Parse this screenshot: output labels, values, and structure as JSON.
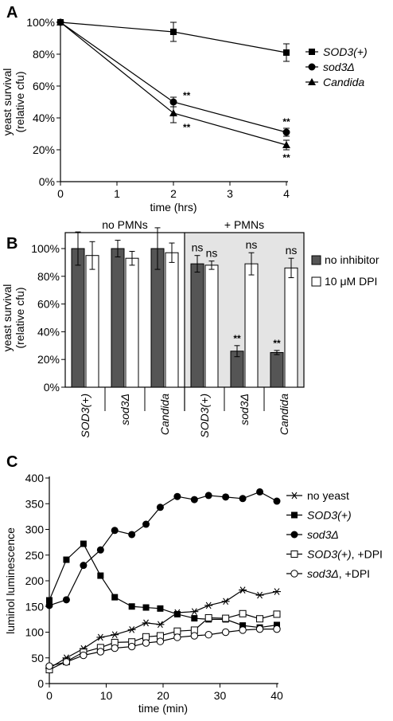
{
  "chart_data": [
    {
      "panel": "A",
      "type": "line",
      "xlabel": "time (hrs)",
      "ylabel": "yeast survival\n(relative cfu)",
      "xlim": [
        0,
        4
      ],
      "ylim": [
        0,
        100
      ],
      "xticks": [
        "0",
        "1",
        "2",
        "3",
        "4"
      ],
      "yticks": [
        "0%",
        "20%",
        "40%",
        "60%",
        "80%",
        "100%"
      ],
      "legend_position": "right",
      "series": [
        {
          "name": "SOD3(+)",
          "marker": "square",
          "x": [
            0,
            2,
            4
          ],
          "y": [
            100,
            94,
            81
          ],
          "err": [
            0,
            6,
            5.5
          ],
          "sig": [
            "",
            "",
            ""
          ]
        },
        {
          "name": "sod3Δ",
          "marker": "circle",
          "x": [
            0,
            2,
            4
          ],
          "y": [
            100,
            50,
            31
          ],
          "err": [
            0,
            3,
            2.5
          ],
          "sig": [
            "",
            "**",
            "**"
          ]
        },
        {
          "name": "Candida",
          "marker": "triangle",
          "x": [
            0,
            2,
            4
          ],
          "y": [
            100,
            43,
            23
          ],
          "err": [
            0,
            6,
            3
          ],
          "sig": [
            "",
            "**",
            "**"
          ]
        }
      ]
    },
    {
      "panel": "B",
      "type": "bar",
      "ylabel": "yeast survival\n(relative cfu)",
      "ylim": [
        0,
        100
      ],
      "yticks": [
        "0%",
        "20%",
        "40%",
        "60%",
        "80%",
        "100%"
      ],
      "groups": [
        "no PMNs",
        "+ PMNs"
      ],
      "categories": [
        "SOD3(+)",
        "sod3Δ",
        "Candida",
        "SOD3(+)",
        "sod3Δ",
        "Candida"
      ],
      "legend_position": "right",
      "series": [
        {
          "name": "no inhibitor",
          "color": "#555555",
          "values": [
            100,
            100,
            100,
            89,
            26,
            25
          ],
          "err": [
            12,
            6,
            15,
            6,
            4,
            1.5
          ],
          "labels": [
            "",
            "",
            "",
            "ns",
            "**",
            "**"
          ]
        },
        {
          "name": "10 μM DPI",
          "color": "#ffffff",
          "values": [
            95,
            93,
            97,
            88,
            89,
            86
          ],
          "err": [
            10,
            5,
            7,
            3,
            8,
            7
          ],
          "labels": [
            "",
            "",
            "",
            "ns",
            "ns",
            "ns"
          ]
        }
      ]
    },
    {
      "panel": "C",
      "type": "line",
      "xlabel": "time (min)",
      "ylabel": "luminol luminescence",
      "xlim": [
        0,
        40
      ],
      "ylim": [
        0,
        400
      ],
      "xticks": [
        "0",
        "10",
        "20",
        "30",
        "40"
      ],
      "yticks": [
        "0",
        "50",
        "100",
        "150",
        "200",
        "250",
        "300",
        "350",
        "400"
      ],
      "legend_position": "right",
      "series": [
        {
          "name": "no yeast",
          "marker": "star",
          "x": [
            0,
            3,
            6,
            9,
            11.5,
            14.5,
            17,
            19.5,
            22.5,
            25.5,
            28,
            31,
            34,
            37,
            40
          ],
          "y": [
            30,
            50,
            68,
            90,
            95,
            105,
            118,
            115,
            138,
            140,
            152,
            160,
            182,
            172,
            179
          ]
        },
        {
          "name": "SOD3(+)",
          "marker": "square-filled",
          "x": [
            0,
            3,
            6,
            9,
            11.5,
            14.5,
            17,
            19.5,
            22.5,
            25.5,
            28,
            31,
            34,
            37,
            40
          ],
          "y": [
            162,
            241,
            272,
            210,
            168,
            150,
            148,
            146,
            135,
            127,
            125,
            125,
            113,
            109,
            114
          ]
        },
        {
          "name": "sod3Δ",
          "marker": "circle-filled",
          "x": [
            0,
            3,
            6,
            9,
            11.5,
            14.5,
            17,
            19.5,
            22.5,
            25.5,
            28,
            31,
            34,
            37,
            40
          ],
          "y": [
            152,
            163,
            230,
            260,
            298,
            290,
            310,
            343,
            364,
            358,
            366,
            363,
            360,
            373,
            355
          ]
        },
        {
          "name": "SOD3(+), +DPI",
          "marker": "square-open",
          "x": [
            0,
            3,
            6,
            9,
            11.5,
            14.5,
            17,
            19.5,
            22.5,
            25.5,
            28,
            31,
            34,
            37,
            40
          ],
          "y": [
            27,
            43,
            61,
            70,
            80,
            81,
            91,
            93,
            102,
            104,
            128,
            127,
            136,
            126,
            135
          ]
        },
        {
          "name": "sod3Δ, +DPI",
          "marker": "circle-open",
          "x": [
            0,
            3,
            6,
            9,
            11.5,
            14.5,
            17,
            19.5,
            22.5,
            25.5,
            28,
            31,
            34,
            37,
            40
          ],
          "y": [
            34,
            42,
            55,
            62,
            69,
            72,
            79,
            82,
            90,
            93,
            95,
            100,
            104,
            106,
            106
          ]
        }
      ]
    }
  ]
}
